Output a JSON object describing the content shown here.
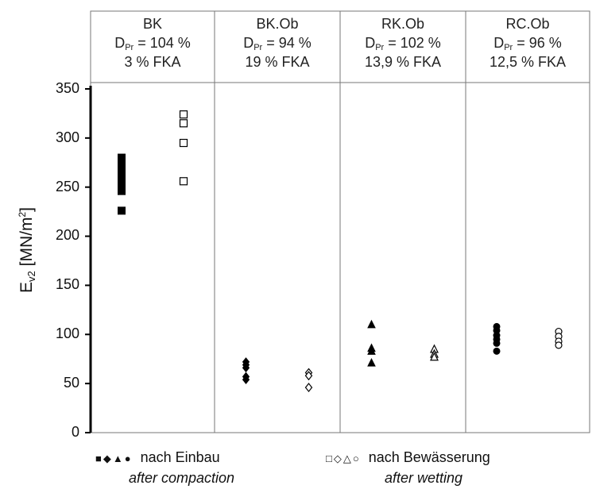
{
  "chart_data": {
    "type": "scatter",
    "ylabel_base": "E",
    "ylabel_sub": "v2",
    "ylabel_unit_pre": " [MN/m",
    "ylabel_unit_sup": "2",
    "ylabel_unit_post": "]",
    "ylim": [
      0,
      350
    ],
    "yticks": [
      "0",
      "50",
      "100",
      "150",
      "200",
      "250",
      "300",
      "350"
    ],
    "grid": false,
    "groups": [
      {
        "name": "BK",
        "dpr_label": "D",
        "dpr_sub": "Pr",
        "dpr_value": " = 104 %",
        "fka": "3 % FKA",
        "marker_compaction": "square",
        "marker_wetting": "square",
        "after_compaction": [
          280,
          272,
          266,
          262,
          255,
          250,
          246,
          226
        ],
        "after_wetting": [
          324,
          315,
          295,
          256
        ]
      },
      {
        "name": "BK.Ob",
        "dpr_label": "D",
        "dpr_sub": "Pr",
        "dpr_value": " = 94 %",
        "fka": "19 % FKA",
        "marker_compaction": "diamond",
        "marker_wetting": "diamond",
        "after_compaction": [
          72,
          69,
          66,
          57,
          54
        ],
        "after_wetting": [
          61,
          58,
          46
        ]
      },
      {
        "name": "RK.Ob",
        "dpr_label": "D",
        "dpr_sub": "Pr",
        "dpr_value": " = 102 %",
        "fka": "13,9 % FKA",
        "marker_compaction": "triangle",
        "marker_wetting": "triangle",
        "after_compaction": [
          110,
          86,
          83,
          71
        ],
        "after_wetting": [
          85,
          80,
          77
        ]
      },
      {
        "name": "RC.Ob",
        "dpr_label": "D",
        "dpr_sub": "Pr",
        "dpr_value": " = 96 %",
        "fka": "12,5 % FKA",
        "marker_compaction": "circle",
        "marker_wetting": "circle",
        "after_compaction": [
          108,
          104,
          99,
          95,
          91,
          83
        ],
        "after_wetting": [
          103,
          98,
          93,
          89
        ]
      }
    ],
    "legend": {
      "compaction_symbols": "■◆▲●",
      "compaction_de": "nach Einbau",
      "compaction_en": "after compaction",
      "wetting_symbols": "□◇△○",
      "wetting_de": "nach Bewässerung",
      "wetting_en": "after wetting"
    }
  }
}
